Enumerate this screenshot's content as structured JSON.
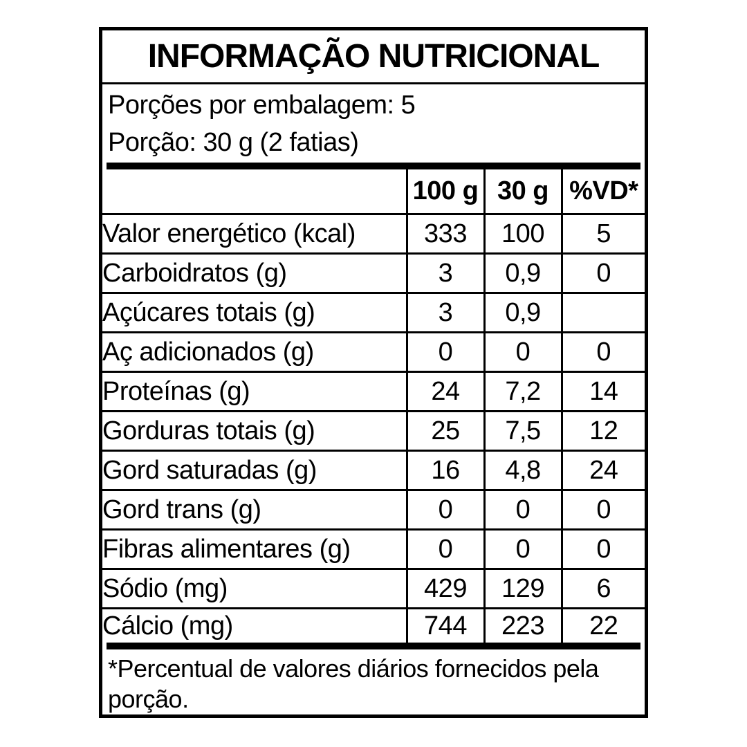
{
  "label": {
    "title": "INFORMAÇÃO NUTRICIONAL",
    "servings_per_package": "Porções por embalagem: 5",
    "portion": "Porção: 30 g (2 fatias)",
    "columns": [
      "100 g",
      "30 g",
      "%VD*"
    ],
    "rows": [
      {
        "name": "Valor energético (kcal)",
        "indent": 0,
        "per100": "333",
        "per30": "100",
        "vd": "5"
      },
      {
        "name": "Carboidratos (g)",
        "indent": 0,
        "per100": "3",
        "per30": "0,9",
        "vd": "0"
      },
      {
        "name": "Açúcares totais (g)",
        "indent": 1,
        "per100": "3",
        "per30": "0,9",
        "vd": ""
      },
      {
        "name": "Aç adicionados (g)",
        "indent": 2,
        "per100": "0",
        "per30": "0",
        "vd": "0"
      },
      {
        "name": "Proteínas (g)",
        "indent": 0,
        "per100": "24",
        "per30": "7,2",
        "vd": "14"
      },
      {
        "name": "Gorduras totais (g)",
        "indent": 0,
        "per100": "25",
        "per30": "7,5",
        "vd": "12"
      },
      {
        "name": "Gord saturadas (g)",
        "indent": 1,
        "per100": "16",
        "per30": "4,8",
        "vd": "24"
      },
      {
        "name": "Gord trans (g)",
        "indent": 1,
        "per100": "0",
        "per30": "0",
        "vd": "0"
      },
      {
        "name": "Fibras alimentares (g)",
        "indent": 0,
        "per100": "0",
        "per30": "0",
        "vd": "0"
      },
      {
        "name": "Sódio (mg)",
        "indent": 0,
        "per100": "429",
        "per30": "129",
        "vd": "6"
      },
      {
        "name": "Cálcio (mg)",
        "indent": 0,
        "per100": "744",
        "per30": "223",
        "vd": "22"
      }
    ],
    "footnote": "*Percentual de valores diários fornecidos pela porção.",
    "colors": {
      "text": "#000000",
      "background": "#ffffff",
      "border": "#000000"
    }
  }
}
